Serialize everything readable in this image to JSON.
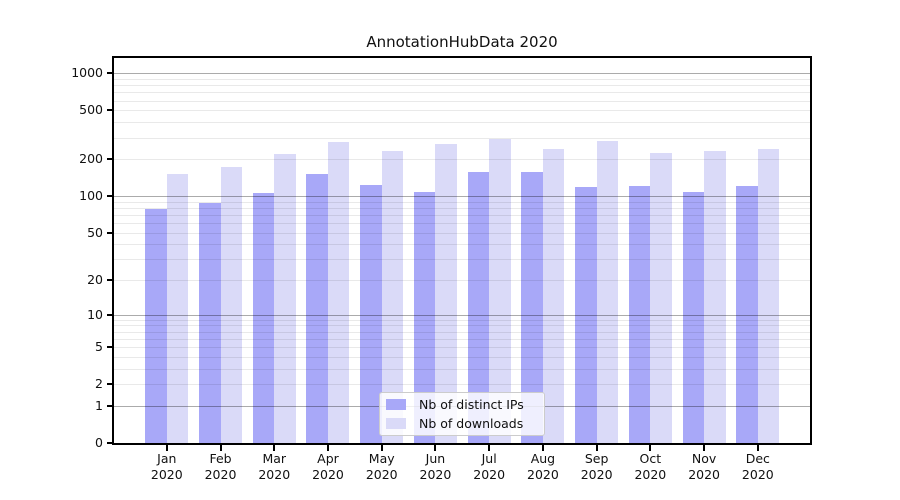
{
  "title": "AnnotationHubData 2020",
  "chart_data": {
    "type": "bar",
    "title": "AnnotationHubData 2020",
    "xlabel": "",
    "ylabel": "",
    "y_scale": "log10(value+1)",
    "y_ticks": [
      1000,
      500,
      200,
      100,
      50,
      20,
      10,
      5,
      2,
      1,
      0
    ],
    "ylim": [
      0,
      1330
    ],
    "grid": true,
    "legend_position": "lower center",
    "categories": [
      "Jan 2020",
      "Feb 2020",
      "Mar 2020",
      "Apr 2020",
      "May 2020",
      "Jun 2020",
      "Jul 2020",
      "Aug 2020",
      "Sep 2020",
      "Oct 2020",
      "Nov 2020",
      "Dec 2020"
    ],
    "series": [
      {
        "name": "Nb of distinct IPs",
        "color": "#a8a8f8",
        "values": [
          78,
          88,
          106,
          153,
          124,
          108,
          158,
          156,
          119,
          121,
          109,
          121
        ]
      },
      {
        "name": "Nb of downloads",
        "color": "#dadaf8",
        "values": [
          151,
          174,
          220,
          275,
          235,
          268,
          295,
          243,
          284,
          226,
          235,
          243
        ]
      }
    ]
  }
}
